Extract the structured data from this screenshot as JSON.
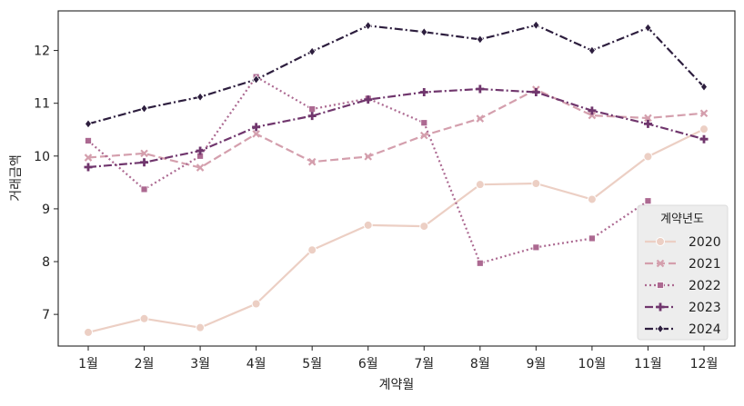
{
  "chart_data": {
    "type": "line",
    "xlabel": "계약월",
    "ylabel": "거래금액",
    "categories": [
      "1월",
      "2월",
      "3월",
      "4월",
      "5월",
      "6월",
      "7월",
      "8월",
      "9월",
      "10월",
      "11월",
      "12월"
    ],
    "ylim": [
      6.4,
      12.75
    ],
    "yticks": [
      7,
      8,
      9,
      10,
      11,
      12
    ],
    "grid": false,
    "legend": {
      "title": "계약년도",
      "placement": "lower right"
    },
    "series": [
      {
        "name": "2020",
        "color": "#eccfc4",
        "dash": "solid",
        "marker": "circle",
        "values": [
          6.66,
          6.92,
          6.75,
          7.2,
          8.22,
          8.69,
          8.67,
          9.46,
          9.48,
          9.18,
          9.99,
          10.51
        ]
      },
      {
        "name": "2021",
        "color": "#d49fad",
        "dash": "dashed",
        "marker": "x",
        "values": [
          9.97,
          10.05,
          9.78,
          10.42,
          9.89,
          9.99,
          10.39,
          10.71,
          11.26,
          10.77,
          10.72,
          10.81
        ]
      },
      {
        "name": "2022",
        "color": "#ac6991",
        "dash": "dotted",
        "marker": "square",
        "values": [
          10.29,
          9.37,
          10.0,
          11.5,
          10.89,
          11.09,
          10.63,
          7.97,
          8.27,
          8.44,
          9.15,
          null
        ]
      },
      {
        "name": "2023",
        "color": "#70366d",
        "dash": "dashdot",
        "marker": "plus",
        "values": [
          9.79,
          9.88,
          10.1,
          10.55,
          10.76,
          11.07,
          11.21,
          11.27,
          11.21,
          10.86,
          10.61,
          10.32
        ]
      },
      {
        "name": "2024",
        "color": "#2d1e3e",
        "dash": "dashdot",
        "marker": "diamond",
        "values": [
          10.61,
          10.9,
          11.12,
          11.45,
          11.98,
          12.47,
          12.35,
          12.21,
          12.48,
          12.0,
          12.43,
          11.31
        ]
      }
    ]
  }
}
